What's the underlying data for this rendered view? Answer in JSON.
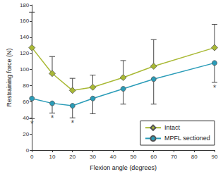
{
  "chart_data": {
    "type": "line",
    "x_label": "Flexion angle (degrees)",
    "y_label": "Restraining force (N)",
    "x": [
      0,
      10,
      20,
      30,
      45,
      60,
      90
    ],
    "series": [
      {
        "name": "Intact",
        "color": "#a9b935",
        "marker": "diamond",
        "values": [
          127,
          95,
          74,
          78,
          90,
          104,
          127
        ],
        "error_plus": [
          44,
          21,
          15,
          15,
          21,
          33,
          29
        ]
      },
      {
        "name": "MPFL sectioned",
        "color": "#2a9cb8",
        "marker": "circle",
        "values": [
          64,
          58,
          55,
          64,
          76,
          88,
          108
        ],
        "error_minus": [
          25,
          12,
          15,
          19,
          19,
          31,
          24
        ]
      }
    ],
    "annotations": [
      {
        "text": "*",
        "x": 0,
        "series": "MPFL sectioned"
      },
      {
        "text": "*",
        "x": 10,
        "series": "MPFL sectioned"
      },
      {
        "text": "*",
        "x": 20,
        "series": "MPFL sectioned"
      },
      {
        "text": "*",
        "x": 90,
        "series": "MPFL sectioned"
      }
    ],
    "xlim": [
      0,
      90
    ],
    "xticks": [
      0,
      10,
      20,
      30,
      40,
      50,
      60,
      70,
      80,
      90
    ],
    "ylim": [
      0,
      180
    ],
    "yticks": [
      0,
      20,
      40,
      60,
      80,
      100,
      120,
      140,
      160,
      180
    ],
    "grid": false,
    "legend": "lower right"
  }
}
